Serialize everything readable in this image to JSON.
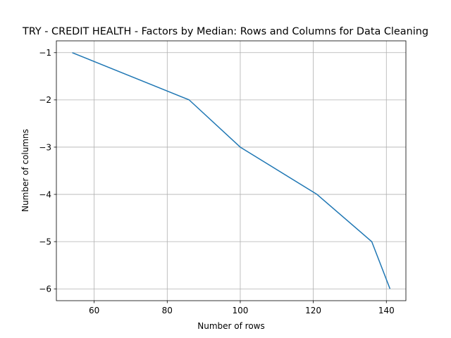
{
  "chart_data": {
    "type": "line",
    "title": "TRY - CREDIT HEALTH - Factors by Median: Rows and Columns for Data Cleaning",
    "xlabel": "Number of rows",
    "ylabel": "Number of columns",
    "grid": true,
    "xlim": [
      49.65,
      145.35
    ],
    "ylim": [
      -6.25,
      -0.75
    ],
    "xticks": [
      60,
      80,
      100,
      120,
      140
    ],
    "yticks": [
      -1,
      -2,
      -3,
      -4,
      -5,
      -6
    ],
    "xtick_labels": [
      "60",
      "80",
      "100",
      "120",
      "140"
    ],
    "ytick_labels": [
      "−1",
      "−2",
      "−3",
      "−4",
      "−5",
      "−6"
    ],
    "series": [
      {
        "x": [
          54,
          86,
          100,
          121,
          136,
          141
        ],
        "y": [
          -1,
          -2,
          -3,
          -4,
          -5,
          -6
        ],
        "color": "#1f77b4"
      }
    ]
  }
}
